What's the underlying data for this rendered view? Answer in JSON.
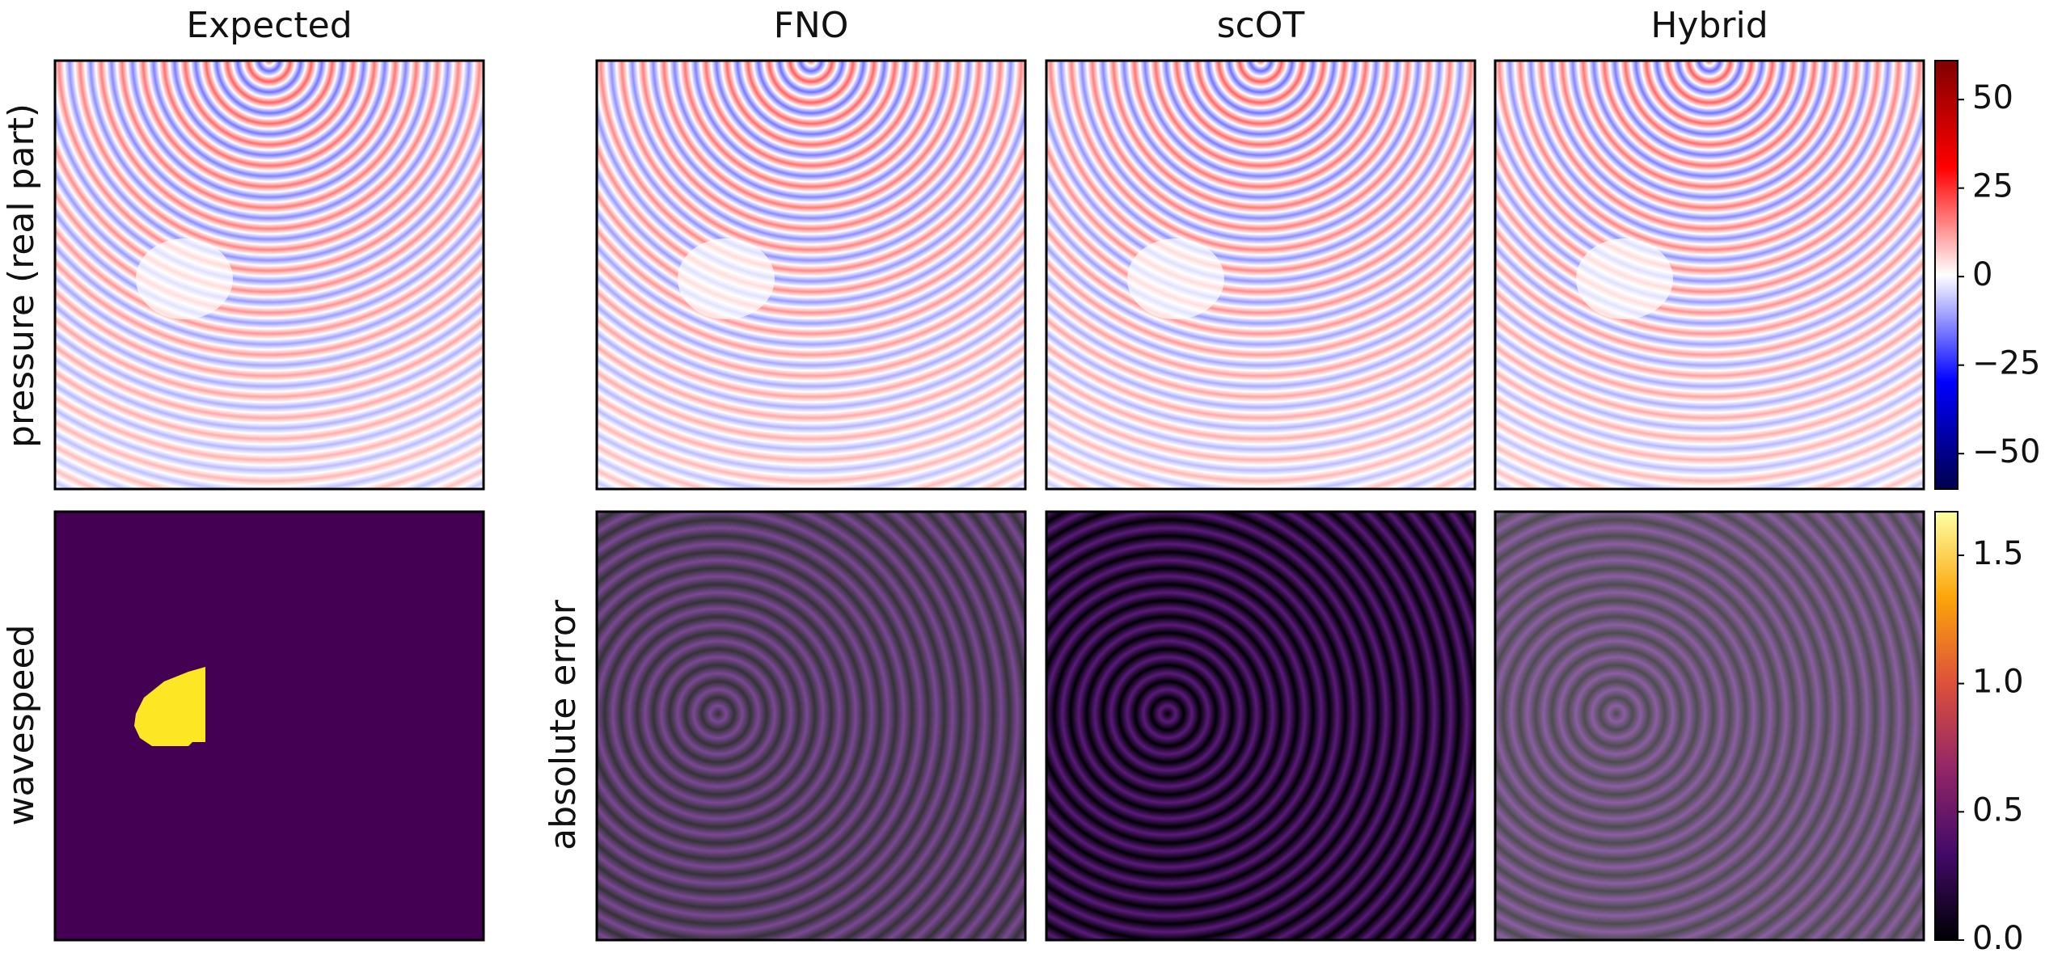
{
  "chart_data": {
    "type": "heatmap",
    "titles": [
      "Expected",
      "FNO",
      "scOT",
      "Hybrid"
    ],
    "row_labels": [
      "pressure (real part)",
      "wavespeed",
      "absolute error"
    ],
    "colorbars": [
      {
        "colormap": "seismic",
        "lim": [
          -60,
          61
        ],
        "ticks": [
          {
            "value": -50,
            "label": "−50"
          },
          {
            "value": -25,
            "label": "−25"
          },
          0,
          25,
          50
        ]
      },
      {
        "colormap": "inferno",
        "lim": [
          0,
          1.67
        ],
        "ticks": [
          {
            "value": 0,
            "label": "0.0"
          },
          0.5,
          {
            "value": 1,
            "label": "1.0"
          },
          1.5
        ]
      }
    ]
  }
}
